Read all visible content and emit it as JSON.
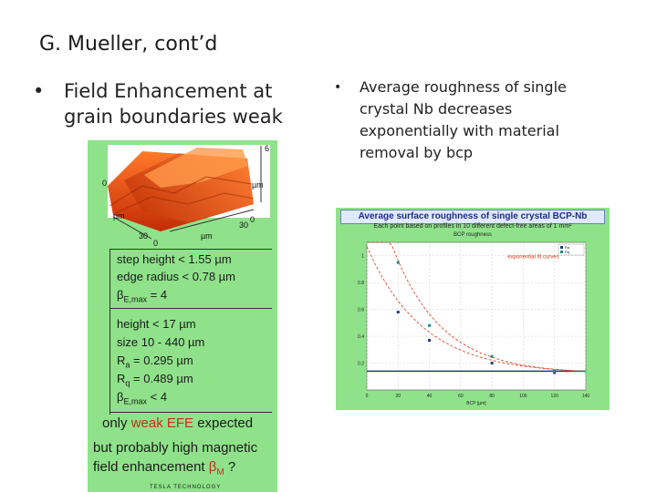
{
  "slide": {
    "title": "G. Mueller, cont’d",
    "left_bullet": "Field Enhancement at grain boundaries weak",
    "right_bullet": "Average roughness of single crystal Nb decreases exponentially with material removal by bcp"
  },
  "afm_image": {
    "label_top": "6",
    "label_um_right": "µm",
    "label_0_left": "0",
    "label_um_left": "µm",
    "label_30_left": "30",
    "label_0_bottom": "0",
    "label_um_bottom": "µm",
    "label_30_right": "30",
    "label_0_right": "0"
  },
  "boundary_box": {
    "step_height": "step height < 1.55 µm",
    "edge_radius": "edge radius < 0.78 µm",
    "beta": "β",
    "beta_sub": "E,max",
    "beta_val": " = 4"
  },
  "grain_box": {
    "height": "height < 17 µm",
    "size": "size 10 - 440 µm",
    "ra_label": "R",
    "ra_sub": "a",
    "ra_val": " = 0.295 µm",
    "rq_label": "R",
    "rq_sub": "q",
    "rq_val": " = 0.489 µm",
    "beta": "β",
    "beta_sub": "E,max",
    "beta_val": " < 4"
  },
  "conclusion": {
    "line1_a": "only ",
    "line1_b": "weak EFE",
    "line1_c": " expected",
    "line2": "but probably high magnetic",
    "line3_a": "field enhancement ",
    "line3_b": "β",
    "line3_sub": "M",
    "line3_c": " ?",
    "footer": "TESLA TECHNOLOGY"
  },
  "chart_panel": {
    "title": "Average surface roughness of single crystal BCP-Nb",
    "subtitle": "Each point based on profiles in 10 different defect-free areas of 1 mm²",
    "inner_title": "BCP roughness",
    "fit_label": "exponential fit curves",
    "legend": [
      "Ra",
      "Rq"
    ],
    "colors": {
      "ra": "#1f3a8a",
      "rq": "#1f8a8a",
      "fit": "#d43a10",
      "flat": "#1f3a8a"
    }
  },
  "chart_data": {
    "type": "scatter",
    "title": "BCP roughness",
    "xlabel": "BCP [µm]",
    "ylabel": "",
    "xlim": [
      0,
      140
    ],
    "ylim": [
      0,
      1.1
    ],
    "xticks": [
      0,
      20,
      40,
      60,
      80,
      100,
      120,
      140
    ],
    "yticks": [
      0.2,
      0.4,
      0.6,
      0.8,
      1
    ],
    "series": [
      {
        "name": "Ra",
        "x": [
          20,
          40,
          80,
          120
        ],
        "y": [
          0.58,
          0.37,
          0.2,
          0.13
        ]
      },
      {
        "name": "Rq",
        "x": [
          20,
          40,
          80,
          120
        ],
        "y": [
          0.95,
          0.48,
          0.25,
          0.14
        ]
      }
    ],
    "flat_level": 0.14
  }
}
